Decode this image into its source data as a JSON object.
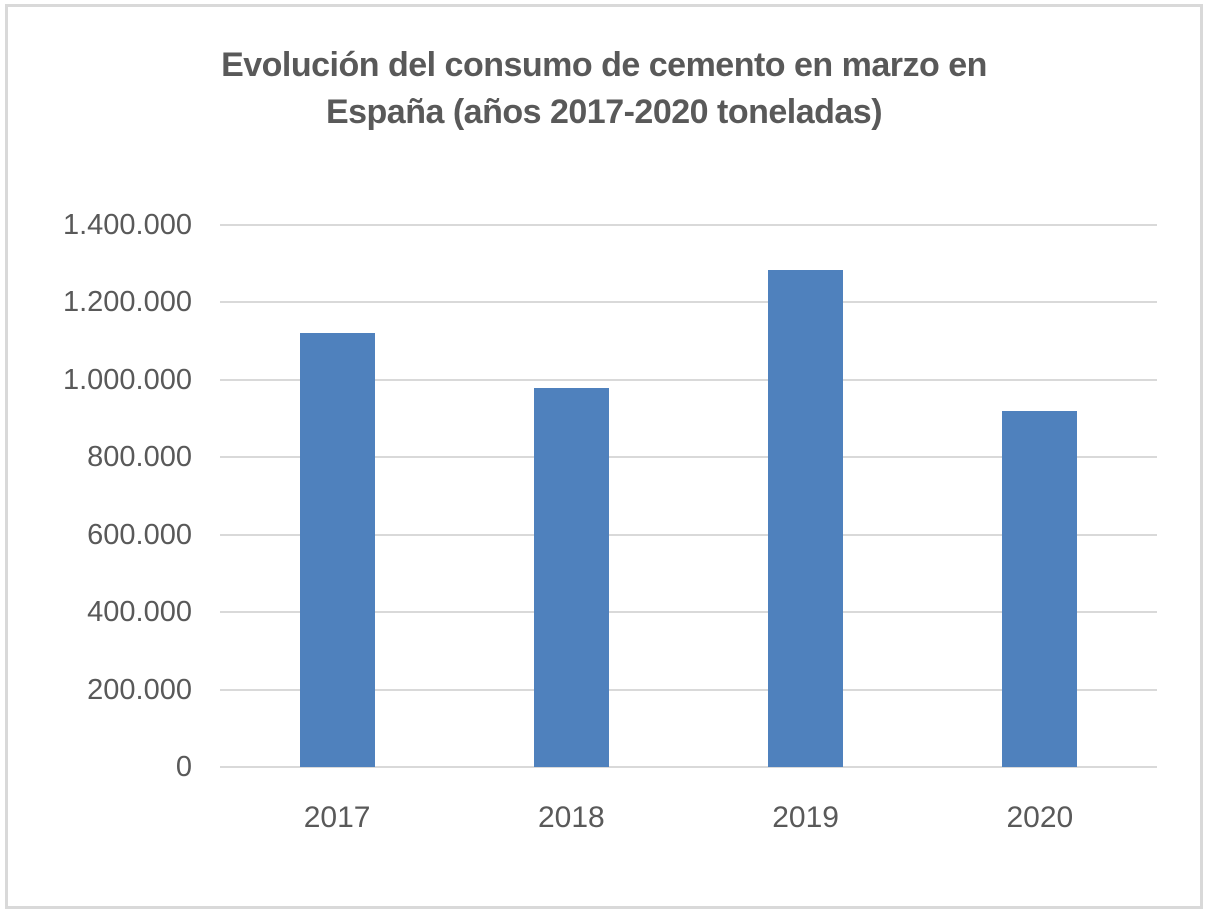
{
  "window": {
    "background": "#FFFFFF",
    "border_color": "#D9D9D9"
  },
  "chart_data": {
    "type": "bar",
    "title": "Evolución del consumo de cemento en marzo en España (años 2017-2020 toneladas)",
    "title_lines": [
      "Evolución del consumo de cemento en marzo en",
      "España (años 2017-2020 toneladas)"
    ],
    "categories": [
      "2017",
      "2018",
      "2019",
      "2020"
    ],
    "values": [
      1120000,
      980000,
      1285000,
      920000
    ],
    "xlabel": "",
    "ylabel": "",
    "ylim": [
      0,
      1400000
    ],
    "y_tick_interval": 200000,
    "y_ticks": [
      {
        "value": 1400000,
        "label": "1.400.000"
      },
      {
        "value": 1200000,
        "label": "1.200.000"
      },
      {
        "value": 1000000,
        "label": "1.000.000"
      },
      {
        "value": 800000,
        "label": "800.000"
      },
      {
        "value": 600000,
        "label": "600.000"
      },
      {
        "value": 400000,
        "label": "400.000"
      },
      {
        "value": 200000,
        "label": "200.000"
      },
      {
        "value": 0,
        "label": "0"
      }
    ],
    "grid": true,
    "legend": "none",
    "colors": {
      "bar": "#4F81BD",
      "gridline": "#D9D9D9",
      "axis_text": "#595959",
      "title_text": "#595959"
    }
  }
}
